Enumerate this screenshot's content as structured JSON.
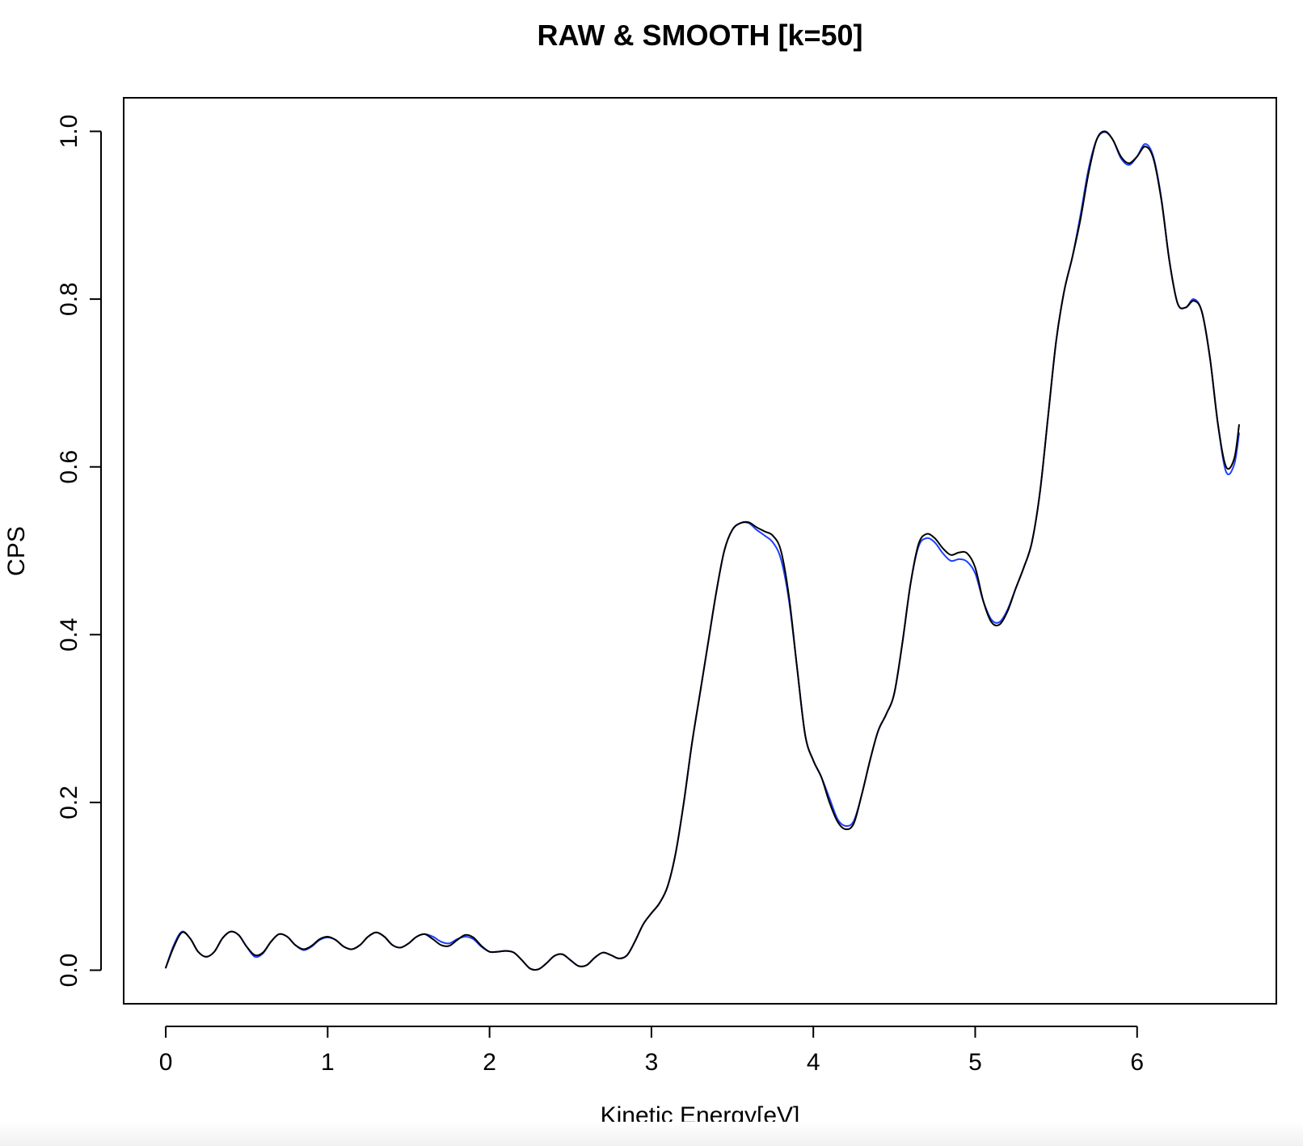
{
  "chart_data": {
    "type": "line",
    "title": "RAW & SMOOTH [k=50]",
    "xlabel": "Kinetic Energy[eV]",
    "ylabel": "CPS",
    "xlim": [
      -0.26,
      6.86
    ],
    "ylim": [
      -0.04,
      1.04
    ],
    "xticks": [
      0,
      1,
      2,
      3,
      4,
      5,
      6
    ],
    "yticks": [
      0.0,
      0.2,
      0.4,
      0.6,
      0.8,
      1.0
    ],
    "xtick_labels": [
      "0",
      "1",
      "2",
      "3",
      "4",
      "5",
      "6"
    ],
    "ytick_labels": [
      "0.0",
      "0.2",
      "0.4",
      "0.6",
      "0.8",
      "1.0"
    ],
    "grid": false,
    "legend": "none",
    "series": [
      {
        "color": "#1f3fff",
        "points": [
          [
            0,
            0.003
          ],
          [
            0.05,
            0.03
          ],
          [
            0.1,
            0.046
          ],
          [
            0.15,
            0.038
          ],
          [
            0.2,
            0.022
          ],
          [
            0.25,
            0.016
          ],
          [
            0.3,
            0.022
          ],
          [
            0.35,
            0.038
          ],
          [
            0.4,
            0.046
          ],
          [
            0.45,
            0.042
          ],
          [
            0.5,
            0.028
          ],
          [
            0.55,
            0.016
          ],
          [
            0.6,
            0.02
          ],
          [
            0.65,
            0.034
          ],
          [
            0.7,
            0.043
          ],
          [
            0.75,
            0.04
          ],
          [
            0.8,
            0.03
          ],
          [
            0.85,
            0.024
          ],
          [
            0.9,
            0.028
          ],
          [
            0.95,
            0.036
          ],
          [
            1.0,
            0.039
          ],
          [
            1.05,
            0.036
          ],
          [
            1.1,
            0.028
          ],
          [
            1.15,
            0.025
          ],
          [
            1.2,
            0.03
          ],
          [
            1.25,
            0.04
          ],
          [
            1.3,
            0.045
          ],
          [
            1.35,
            0.04
          ],
          [
            1.4,
            0.03
          ],
          [
            1.45,
            0.027
          ],
          [
            1.5,
            0.032
          ],
          [
            1.55,
            0.04
          ],
          [
            1.6,
            0.043
          ],
          [
            1.65,
            0.04
          ],
          [
            1.7,
            0.034
          ],
          [
            1.75,
            0.032
          ],
          [
            1.8,
            0.037
          ],
          [
            1.85,
            0.04
          ],
          [
            1.9,
            0.037
          ],
          [
            1.95,
            0.028
          ],
          [
            2.0,
            0.022
          ],
          [
            2.05,
            0.022
          ],
          [
            2.1,
            0.023
          ],
          [
            2.15,
            0.021
          ],
          [
            2.2,
            0.012
          ],
          [
            2.25,
            0.002
          ],
          [
            2.3,
            0.001
          ],
          [
            2.35,
            0.008
          ],
          [
            2.4,
            0.017
          ],
          [
            2.45,
            0.019
          ],
          [
            2.5,
            0.012
          ],
          [
            2.55,
            0.005
          ],
          [
            2.6,
            0.006
          ],
          [
            2.65,
            0.015
          ],
          [
            2.7,
            0.021
          ],
          [
            2.75,
            0.018
          ],
          [
            2.8,
            0.014
          ],
          [
            2.85,
            0.018
          ],
          [
            2.9,
            0.035
          ],
          [
            2.95,
            0.055
          ],
          [
            3.0,
            0.068
          ],
          [
            3.05,
            0.08
          ],
          [
            3.1,
            0.1
          ],
          [
            3.15,
            0.14
          ],
          [
            3.2,
            0.2
          ],
          [
            3.25,
            0.27
          ],
          [
            3.3,
            0.33
          ],
          [
            3.35,
            0.39
          ],
          [
            3.4,
            0.45
          ],
          [
            3.45,
            0.5
          ],
          [
            3.5,
            0.525
          ],
          [
            3.55,
            0.533
          ],
          [
            3.6,
            0.533
          ],
          [
            3.65,
            0.525
          ],
          [
            3.7,
            0.518
          ],
          [
            3.75,
            0.51
          ],
          [
            3.8,
            0.49
          ],
          [
            3.85,
            0.44
          ],
          [
            3.9,
            0.36
          ],
          [
            3.95,
            0.28
          ],
          [
            4.0,
            0.25
          ],
          [
            4.05,
            0.23
          ],
          [
            4.1,
            0.205
          ],
          [
            4.15,
            0.18
          ],
          [
            4.2,
            0.172
          ],
          [
            4.25,
            0.178
          ],
          [
            4.3,
            0.21
          ],
          [
            4.35,
            0.25
          ],
          [
            4.4,
            0.285
          ],
          [
            4.45,
            0.305
          ],
          [
            4.5,
            0.33
          ],
          [
            4.55,
            0.39
          ],
          [
            4.6,
            0.46
          ],
          [
            4.65,
            0.505
          ],
          [
            4.7,
            0.515
          ],
          [
            4.75,
            0.51
          ],
          [
            4.8,
            0.497
          ],
          [
            4.85,
            0.488
          ],
          [
            4.9,
            0.49
          ],
          [
            4.95,
            0.487
          ],
          [
            5.0,
            0.473
          ],
          [
            5.05,
            0.44
          ],
          [
            5.1,
            0.418
          ],
          [
            5.15,
            0.415
          ],
          [
            5.2,
            0.43
          ],
          [
            5.25,
            0.455
          ],
          [
            5.3,
            0.48
          ],
          [
            5.35,
            0.51
          ],
          [
            5.4,
            0.57
          ],
          [
            5.45,
            0.66
          ],
          [
            5.5,
            0.75
          ],
          [
            5.55,
            0.81
          ],
          [
            5.6,
            0.85
          ],
          [
            5.65,
            0.9
          ],
          [
            5.7,
            0.955
          ],
          [
            5.75,
            0.99
          ],
          [
            5.8,
            0.999
          ],
          [
            5.85,
            0.99
          ],
          [
            5.9,
            0.968
          ],
          [
            5.95,
            0.96
          ],
          [
            6.0,
            0.97
          ],
          [
            6.05,
            0.985
          ],
          [
            6.1,
            0.97
          ],
          [
            6.15,
            0.92
          ],
          [
            6.2,
            0.845
          ],
          [
            6.25,
            0.795
          ],
          [
            6.3,
            0.79
          ],
          [
            6.35,
            0.8
          ],
          [
            6.4,
            0.785
          ],
          [
            6.45,
            0.73
          ],
          [
            6.5,
            0.65
          ],
          [
            6.55,
            0.594
          ],
          [
            6.6,
            0.603
          ],
          [
            6.63,
            0.64
          ]
        ]
      },
      {
        "color": "#000000",
        "points": [
          [
            0,
            0.003
          ],
          [
            0.05,
            0.028
          ],
          [
            0.1,
            0.045
          ],
          [
            0.15,
            0.038
          ],
          [
            0.2,
            0.022
          ],
          [
            0.25,
            0.016
          ],
          [
            0.3,
            0.022
          ],
          [
            0.35,
            0.038
          ],
          [
            0.4,
            0.046
          ],
          [
            0.45,
            0.042
          ],
          [
            0.5,
            0.028
          ],
          [
            0.55,
            0.018
          ],
          [
            0.6,
            0.021
          ],
          [
            0.65,
            0.034
          ],
          [
            0.7,
            0.043
          ],
          [
            0.75,
            0.04
          ],
          [
            0.8,
            0.03
          ],
          [
            0.85,
            0.025
          ],
          [
            0.9,
            0.029
          ],
          [
            0.95,
            0.037
          ],
          [
            1.0,
            0.04
          ],
          [
            1.05,
            0.036
          ],
          [
            1.1,
            0.028
          ],
          [
            1.15,
            0.025
          ],
          [
            1.2,
            0.03
          ],
          [
            1.25,
            0.04
          ],
          [
            1.3,
            0.045
          ],
          [
            1.35,
            0.04
          ],
          [
            1.4,
            0.03
          ],
          [
            1.45,
            0.027
          ],
          [
            1.5,
            0.032
          ],
          [
            1.55,
            0.04
          ],
          [
            1.6,
            0.043
          ],
          [
            1.65,
            0.037
          ],
          [
            1.7,
            0.03
          ],
          [
            1.75,
            0.029
          ],
          [
            1.8,
            0.036
          ],
          [
            1.85,
            0.042
          ],
          [
            1.9,
            0.039
          ],
          [
            1.95,
            0.029
          ],
          [
            2.0,
            0.022
          ],
          [
            2.05,
            0.022
          ],
          [
            2.1,
            0.023
          ],
          [
            2.15,
            0.021
          ],
          [
            2.2,
            0.012
          ],
          [
            2.25,
            0.002
          ],
          [
            2.3,
            0.001
          ],
          [
            2.35,
            0.008
          ],
          [
            2.4,
            0.017
          ],
          [
            2.45,
            0.019
          ],
          [
            2.5,
            0.012
          ],
          [
            2.55,
            0.005
          ],
          [
            2.6,
            0.006
          ],
          [
            2.65,
            0.015
          ],
          [
            2.7,
            0.021
          ],
          [
            2.75,
            0.018
          ],
          [
            2.8,
            0.014
          ],
          [
            2.85,
            0.018
          ],
          [
            2.9,
            0.035
          ],
          [
            2.95,
            0.055
          ],
          [
            3.0,
            0.068
          ],
          [
            3.05,
            0.08
          ],
          [
            3.1,
            0.1
          ],
          [
            3.15,
            0.14
          ],
          [
            3.2,
            0.2
          ],
          [
            3.25,
            0.27
          ],
          [
            3.3,
            0.33
          ],
          [
            3.35,
            0.39
          ],
          [
            3.4,
            0.45
          ],
          [
            3.45,
            0.5
          ],
          [
            3.5,
            0.525
          ],
          [
            3.55,
            0.533
          ],
          [
            3.6,
            0.534
          ],
          [
            3.65,
            0.528
          ],
          [
            3.7,
            0.523
          ],
          [
            3.75,
            0.518
          ],
          [
            3.8,
            0.5
          ],
          [
            3.85,
            0.445
          ],
          [
            3.9,
            0.36
          ],
          [
            3.95,
            0.28
          ],
          [
            4.0,
            0.25
          ],
          [
            4.05,
            0.23
          ],
          [
            4.1,
            0.2
          ],
          [
            4.15,
            0.177
          ],
          [
            4.2,
            0.168
          ],
          [
            4.25,
            0.175
          ],
          [
            4.3,
            0.21
          ],
          [
            4.35,
            0.25
          ],
          [
            4.4,
            0.285
          ],
          [
            4.45,
            0.305
          ],
          [
            4.5,
            0.33
          ],
          [
            4.55,
            0.39
          ],
          [
            4.6,
            0.46
          ],
          [
            4.65,
            0.508
          ],
          [
            4.7,
            0.52
          ],
          [
            4.75,
            0.515
          ],
          [
            4.8,
            0.503
          ],
          [
            4.85,
            0.495
          ],
          [
            4.9,
            0.498
          ],
          [
            4.95,
            0.497
          ],
          [
            5.0,
            0.48
          ],
          [
            5.05,
            0.44
          ],
          [
            5.1,
            0.415
          ],
          [
            5.15,
            0.412
          ],
          [
            5.2,
            0.428
          ],
          [
            5.25,
            0.455
          ],
          [
            5.3,
            0.48
          ],
          [
            5.35,
            0.51
          ],
          [
            5.4,
            0.57
          ],
          [
            5.45,
            0.66
          ],
          [
            5.5,
            0.75
          ],
          [
            5.55,
            0.81
          ],
          [
            5.6,
            0.85
          ],
          [
            5.65,
            0.895
          ],
          [
            5.7,
            0.95
          ],
          [
            5.75,
            0.99
          ],
          [
            5.8,
            1.0
          ],
          [
            5.85,
            0.99
          ],
          [
            5.9,
            0.97
          ],
          [
            5.95,
            0.962
          ],
          [
            6.0,
            0.97
          ],
          [
            6.05,
            0.982
          ],
          [
            6.1,
            0.968
          ],
          [
            6.15,
            0.918
          ],
          [
            6.2,
            0.845
          ],
          [
            6.25,
            0.795
          ],
          [
            6.3,
            0.79
          ],
          [
            6.35,
            0.798
          ],
          [
            6.4,
            0.785
          ],
          [
            6.45,
            0.73
          ],
          [
            6.5,
            0.65
          ],
          [
            6.55,
            0.6
          ],
          [
            6.6,
            0.61
          ],
          [
            6.63,
            0.65
          ]
        ]
      }
    ]
  }
}
